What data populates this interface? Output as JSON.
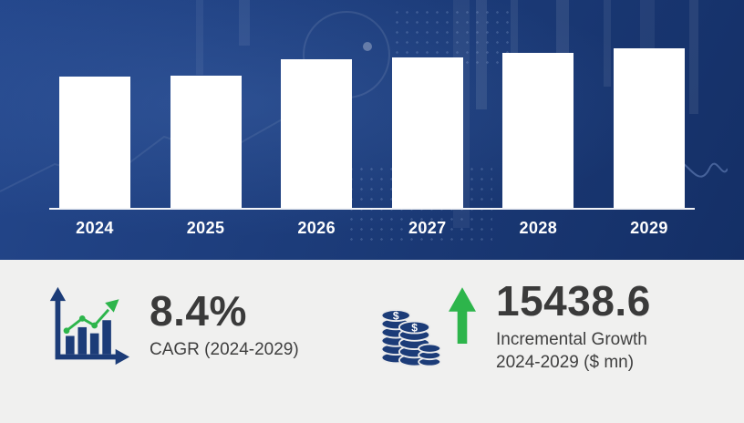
{
  "chart_data": {
    "type": "bar",
    "categories": [
      "2024",
      "2025",
      "2026",
      "2027",
      "2028",
      "2029"
    ],
    "values": [
      82,
      83,
      93,
      94,
      97,
      100
    ],
    "ylim": [
      0,
      100
    ],
    "title": "",
    "xlabel": "",
    "ylabel": "",
    "legend": "none",
    "grid": false,
    "bar_color": "#ffffff"
  },
  "stats": {
    "cagr": {
      "value": "8.4%",
      "label": "CAGR (2024-2029)"
    },
    "incremental": {
      "value": "15438.6",
      "label_line1": "Incremental Growth",
      "label_line2": "2024-2029 ($ mn)"
    }
  },
  "colors": {
    "navy": "#1c3c78",
    "top_background": "#1b3a77",
    "bottom_background": "#f0f0ef",
    "bar_white": "#ffffff",
    "green": "#2db54b",
    "text_dark": "#3a3a3a"
  }
}
